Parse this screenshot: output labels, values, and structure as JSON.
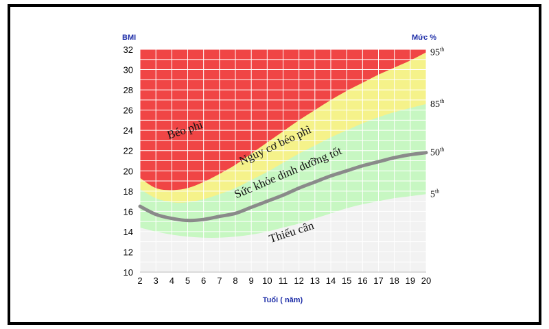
{
  "chart_data": {
    "type": "area",
    "title": "",
    "ylabel": "BMI",
    "xlabel": "Tuổi ( năm)",
    "right_label": "Mức %",
    "xlim": [
      2,
      20
    ],
    "ylim": [
      10,
      32
    ],
    "x_ticks": [
      2,
      3,
      4,
      5,
      6,
      7,
      8,
      9,
      10,
      11,
      12,
      13,
      14,
      15,
      16,
      17,
      18,
      19,
      20
    ],
    "y_ticks": [
      10,
      12,
      14,
      16,
      18,
      20,
      22,
      24,
      26,
      28,
      30,
      32
    ],
    "grid": true,
    "ages": [
      2,
      3,
      4,
      5,
      6,
      7,
      8,
      9,
      10,
      11,
      12,
      13,
      14,
      15,
      16,
      17,
      18,
      19,
      20
    ],
    "series": [
      {
        "name": "5th",
        "values": [
          14.4,
          14.0,
          13.7,
          13.5,
          13.4,
          13.4,
          13.5,
          13.7,
          14.0,
          14.4,
          14.8,
          15.3,
          15.8,
          16.3,
          16.7,
          17.0,
          17.3,
          17.5,
          17.7
        ]
      },
      {
        "name": "50th",
        "values": [
          16.5,
          15.7,
          15.3,
          15.1,
          15.2,
          15.5,
          15.8,
          16.4,
          17.0,
          17.6,
          18.3,
          18.9,
          19.5,
          20.0,
          20.5,
          20.9,
          21.3,
          21.6,
          21.8
        ]
      },
      {
        "name": "85th",
        "values": [
          18.2,
          17.3,
          16.9,
          16.9,
          17.2,
          17.7,
          18.3,
          19.1,
          19.9,
          20.8,
          21.7,
          22.5,
          23.3,
          24.0,
          24.7,
          25.3,
          25.8,
          26.2,
          26.6
        ]
      },
      {
        "name": "95th",
        "values": [
          19.3,
          18.3,
          18.1,
          18.3,
          18.9,
          19.7,
          20.6,
          21.7,
          22.8,
          23.9,
          25.0,
          26.0,
          27.0,
          27.9,
          28.7,
          29.5,
          30.2,
          30.9,
          31.7
        ]
      }
    ],
    "zone_colors": {
      "obese": "#f04545",
      "risk": "#f5f28a",
      "healthy": "#c7f7c2",
      "underweight": "#f2f2f2",
      "median_line": "#8a8a8a"
    },
    "zones": [
      {
        "id": "obese",
        "label": "Béo phì",
        "x": 4.9,
        "y": 23.7,
        "angle": -18
      },
      {
        "id": "risk",
        "label": "Nguy cơ béo phì",
        "x": 10.6,
        "y": 22.2,
        "angle": -25
      },
      {
        "id": "healthy",
        "label": "Sức khỏe dinh dưỡng tốt",
        "x": 11.4,
        "y": 19.5,
        "angle": -23
      },
      {
        "id": "underweight",
        "label": "Thiếu cân",
        "x": 11.6,
        "y": 13.6,
        "angle": -18
      }
    ],
    "percentile_labels": [
      {
        "main": "95",
        "sup": "th",
        "bmi": 31.7
      },
      {
        "main": "85",
        "sup": "th",
        "bmi": 26.6
      },
      {
        "main": "50",
        "sup": "th",
        "bmi": 21.8
      },
      {
        "main": "5",
        "sup": "th",
        "bmi": 17.7
      }
    ]
  }
}
